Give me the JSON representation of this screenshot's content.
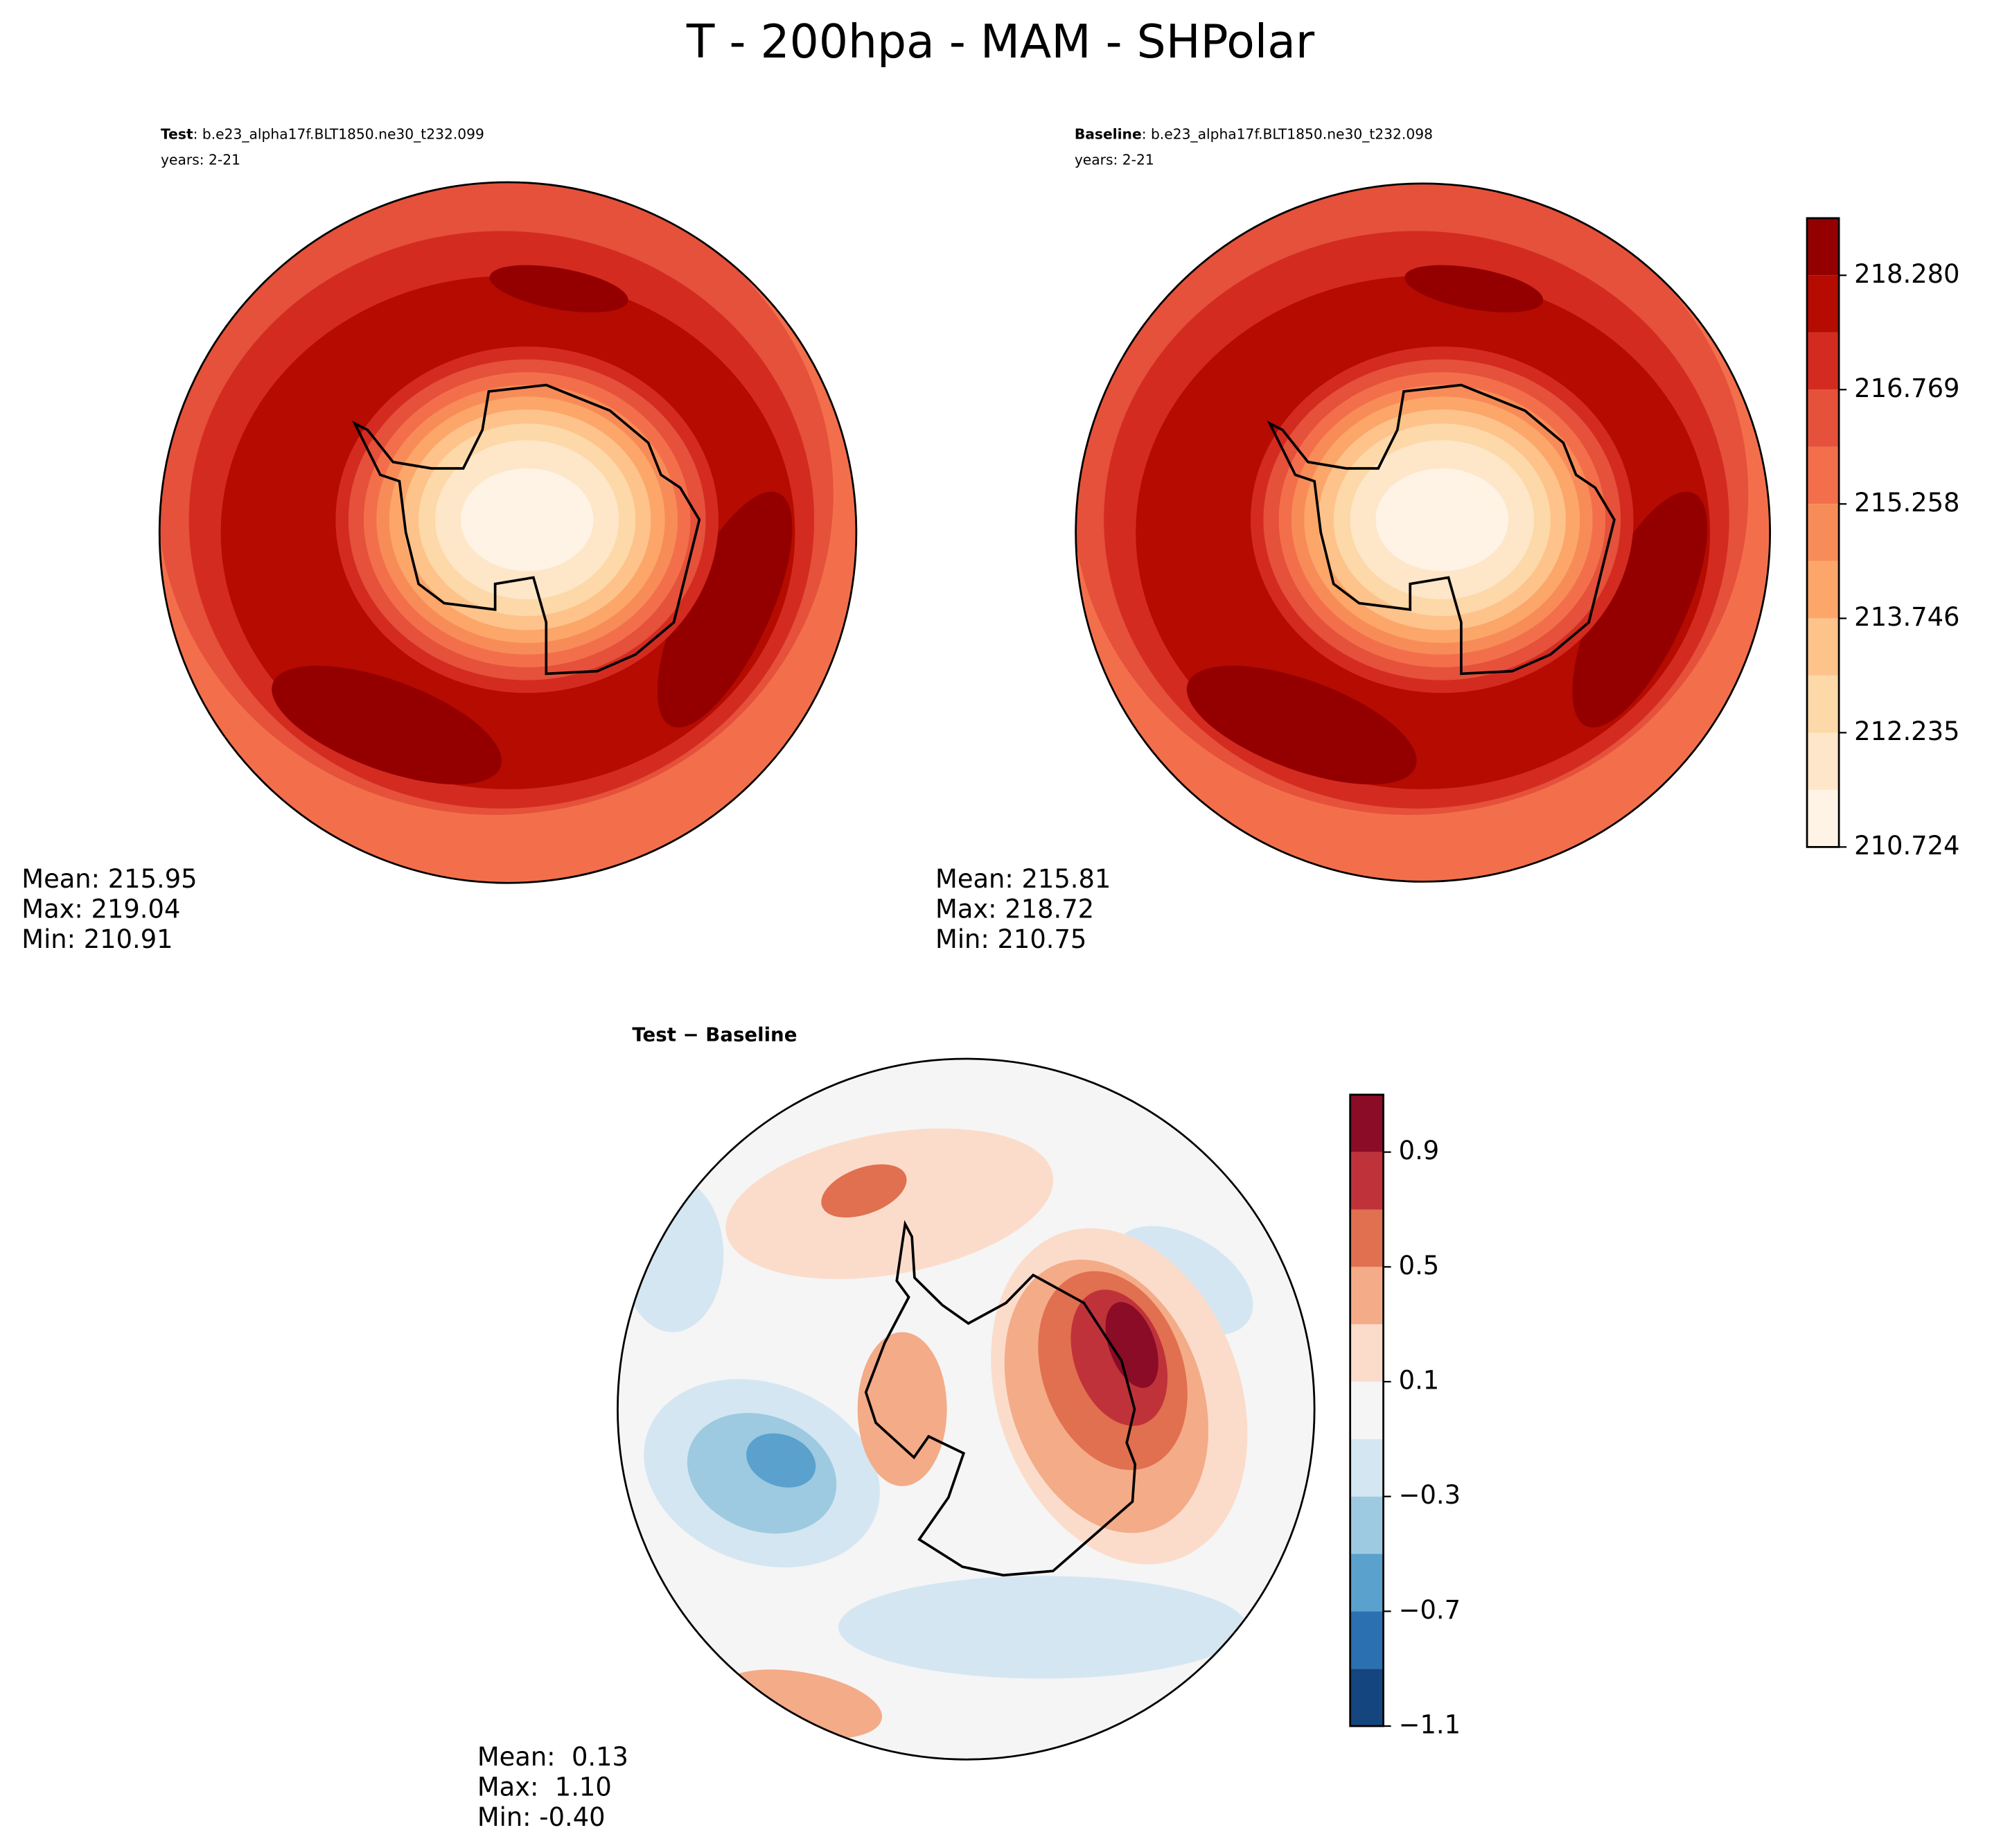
{
  "title": "T - 200hpa - MAM - SHPolar",
  "chart_data": [
    {
      "type": "contour-map",
      "label": "Test",
      "case": ": b.e23_alpha17f.BLT1850.ne30_t232.099",
      "subtitle": "years: 2-21",
      "stats": [
        "Mean: 215.95",
        "Max: 219.04",
        "Min: 210.91"
      ]
    },
    {
      "type": "contour-map",
      "label": "Baseline",
      "case": ": b.e23_alpha17f.BLT1850.ne30_t232.098",
      "subtitle": "years: 2-21",
      "stats": [
        "Mean: 215.81",
        "Max: 218.72",
        "Min: 210.75"
      ],
      "colorbar": {
        "levels": [
          210.724,
          211.48,
          212.235,
          212.991,
          213.746,
          214.502,
          215.258,
          216.013,
          216.769,
          217.524,
          218.28,
          219.035
        ],
        "colors": [
          "#fff3e6",
          "#fee6c8",
          "#fdd8a8",
          "#fdc38b",
          "#fca66a",
          "#f88c58",
          "#f36f4b",
          "#e5513a",
          "#d42b21",
          "#b50b00",
          "#940000"
        ],
        "ticks": [
          210.724,
          212.235,
          213.746,
          215.258,
          216.769,
          {
            "value": 218.28,
            "label": "218.280"
          }
        ]
      }
    },
    {
      "type": "contour-map",
      "label": "Test − Baseline",
      "stats": [
        "Mean:  0.13",
        "Max:  1.10",
        "Min: -0.40"
      ],
      "colorbar": {
        "levels": [
          -1.1,
          -0.9,
          -0.7,
          -0.5,
          -0.3,
          -0.1,
          0.1,
          0.3,
          0.5,
          0.7,
          0.9,
          1.1
        ],
        "colors": [
          "#15457f",
          "#2b70b0",
          "#5aa1cd",
          "#9dcae1",
          "#d4e6f1",
          "#f5f5f5",
          "#fbdccb",
          "#f4ab88",
          "#e0704f",
          "#c0323a",
          "#8a0c26"
        ],
        "ticks": [
          {
            "value": -1.1,
            "label": "−1.1"
          },
          {
            "value": -0.7,
            "label": "−0.7"
          },
          {
            "value": -0.3,
            "label": "−0.3"
          },
          0.1,
          0.5,
          0.9
        ]
      }
    }
  ]
}
